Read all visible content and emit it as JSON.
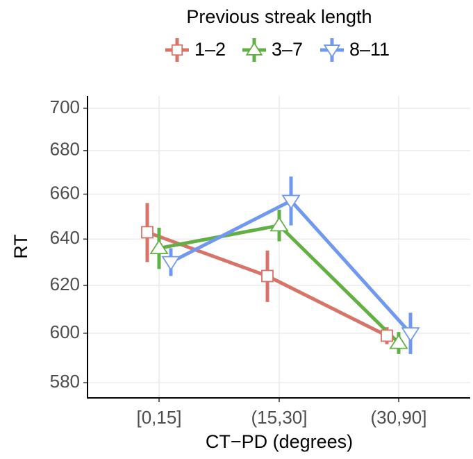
{
  "chart_data": {
    "type": "line",
    "legend_title": "Previous streak length",
    "x_label": "CT−PD (degrees)",
    "y_label": "RT",
    "categories": [
      "[0,15]",
      "(15,30]",
      "(30,90]"
    ],
    "series": [
      {
        "name": "1–2",
        "color": "#d8736a",
        "marker": "square",
        "values": [
          643,
          624,
          599
        ],
        "errors": [
          13,
          11,
          3.5
        ]
      },
      {
        "name": "3–7",
        "color": "#62b044",
        "marker": "triangle-up",
        "values": [
          636,
          646,
          596
        ],
        "errors": [
          9,
          7,
          4.5
        ]
      },
      {
        "name": "8–11",
        "color": "#7198f0",
        "marker": "triangle-down",
        "values": [
          630,
          657,
          600
        ],
        "errors": [
          6,
          11,
          8.5
        ]
      }
    ],
    "ylim": [
      574,
      706
    ],
    "yticks": [
      580,
      600,
      620,
      640,
      660,
      680,
      700
    ],
    "log_y": true,
    "grid": true,
    "legend_position": "top"
  }
}
